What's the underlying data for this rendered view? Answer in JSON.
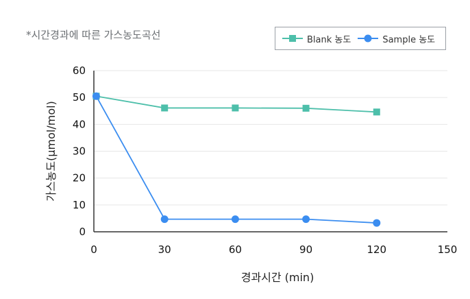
{
  "chart_data": {
    "type": "line",
    "title": "*시간경과에 따른 가스농도곡선",
    "xlabel": "경과시간 (min)",
    "ylabel": "가스농도(μmol/mol)",
    "xlim": [
      0,
      150
    ],
    "ylim": [
      0,
      60
    ],
    "x_ticks": [
      0,
      30,
      60,
      90,
      120,
      150
    ],
    "y_ticks": [
      0,
      10,
      20,
      30,
      40,
      50,
      60
    ],
    "grid": true,
    "legend_position": "top-right",
    "series": [
      {
        "name": "Blank 농도",
        "color": "#4dbfaa",
        "marker": "square",
        "x": [
          1,
          30,
          60,
          90,
          120
        ],
        "y": [
          50.5,
          46.1,
          46.1,
          46.0,
          44.6
        ]
      },
      {
        "name": "Sample 농도",
        "color": "#3b8df0",
        "marker": "circle",
        "x": [
          1,
          30,
          60,
          90,
          120
        ],
        "y": [
          50.5,
          4.7,
          4.7,
          4.7,
          3.3
        ]
      }
    ]
  }
}
